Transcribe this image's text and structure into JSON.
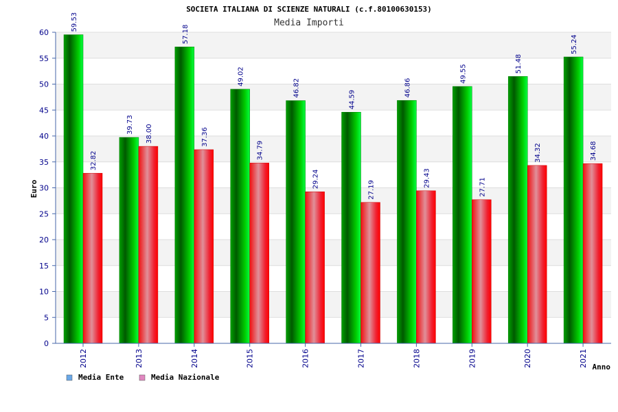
{
  "chart_data": {
    "type": "bar",
    "title": "SOCIETA ITALIANA DI SCIENZE NATURALI (c.f.80100630153)",
    "subtitle": "Media Importi",
    "xlabel": "Anno",
    "ylabel": "Euro",
    "ylim": [
      0,
      60
    ],
    "ytick_step": 5,
    "grid": true,
    "legend_position": "bottom-left",
    "categories": [
      "2012",
      "2013",
      "2014",
      "2015",
      "2016",
      "2017",
      "2018",
      "2019",
      "2020",
      "2021"
    ],
    "series": [
      {
        "name": "Media Ente",
        "color": "#00a000",
        "legend_color": "#6aa8e8",
        "values": [
          59.53,
          39.73,
          57.18,
          49.02,
          46.82,
          44.59,
          46.86,
          49.55,
          51.48,
          55.24
        ],
        "labels": [
          "59.53",
          "39.73",
          "57.18",
          "49.02",
          "46.82",
          "44.59",
          "46.86",
          "49.55",
          "51.48",
          "55.24"
        ]
      },
      {
        "name": "Media Nazionale",
        "color": "#ee1111",
        "legend_color": "#e088c0",
        "values": [
          32.82,
          38.0,
          37.36,
          34.79,
          29.24,
          27.19,
          29.43,
          27.71,
          34.32,
          34.68
        ],
        "labels": [
          "32.82",
          "38.00",
          "37.36",
          "34.79",
          "29.24",
          "27.19",
          "29.43",
          "27.71",
          "34.32",
          "34.68"
        ]
      }
    ]
  }
}
